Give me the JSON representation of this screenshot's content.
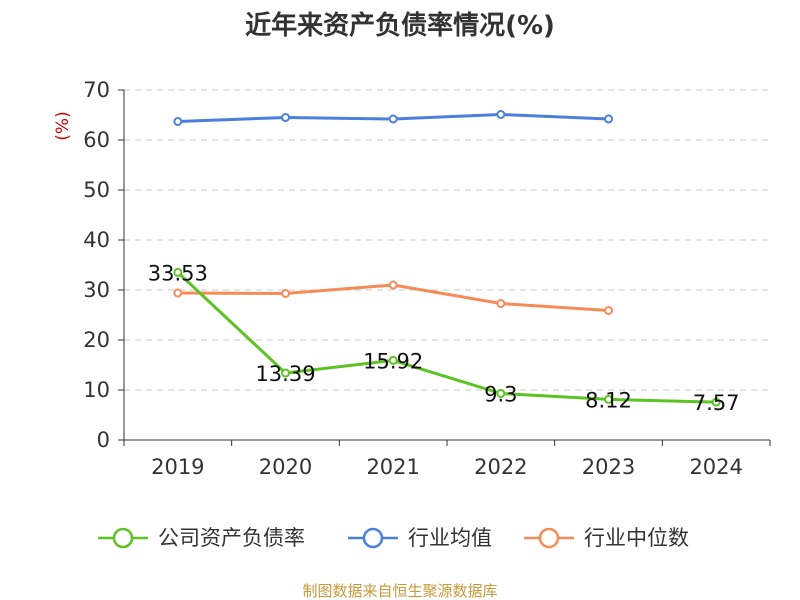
{
  "chart_data": {
    "type": "line",
    "title": "近年来资产负债率情况(%)",
    "ylabel": "(%)",
    "xlabel": "",
    "ylim": [
      0,
      70
    ],
    "yticks": [
      0,
      10,
      20,
      30,
      40,
      50,
      60,
      70
    ],
    "categories": [
      "2019",
      "2020",
      "2021",
      "2022",
      "2023",
      "2024"
    ],
    "grid": true,
    "legend_position": "bottom",
    "series": [
      {
        "name": "公司资产负债率",
        "color": "#5dc223",
        "values": [
          33.53,
          13.39,
          15.92,
          9.3,
          8.12,
          7.57
        ],
        "labels": [
          "33.53",
          "13.39",
          "15.92",
          "9.3",
          "8.12",
          "7.57"
        ]
      },
      {
        "name": "行业均值",
        "color": "#4a7fdc",
        "values": [
          63.7,
          64.5,
          64.2,
          65.1,
          64.2,
          null
        ]
      },
      {
        "name": "行业中位数",
        "color": "#f78b58",
        "values": [
          29.4,
          29.3,
          31.0,
          27.3,
          25.9,
          null
        ]
      }
    ]
  },
  "source_text": "制图数据来自恒生聚源数据库"
}
